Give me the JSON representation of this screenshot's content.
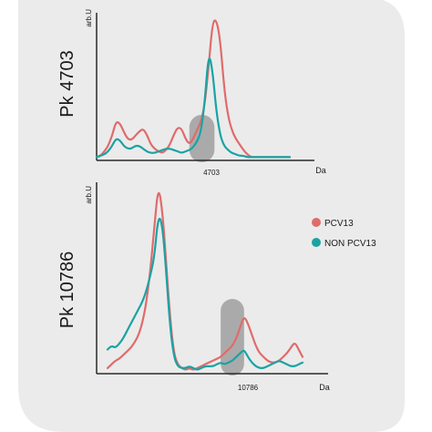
{
  "colors": {
    "background_panel": "#ebebeb",
    "axis": "#2b2b2b",
    "pcv13": "#e06b6b",
    "non_pcv13": "#1aa3a3",
    "highlight": "#8f8f8f"
  },
  "legend": {
    "items": [
      {
        "label": "PCV13",
        "color": "#e06b6b"
      },
      {
        "label": "NON PCV13",
        "color": "#1aa3a3"
      }
    ]
  },
  "chart_data": [
    {
      "type": "line",
      "title": "Pk 4703",
      "xlabel": "Da",
      "ylabel": "arb.U",
      "x_tick_label": "4703",
      "x": [
        0,
        2,
        4,
        6,
        8,
        10,
        12,
        14,
        16,
        18,
        20,
        22,
        24,
        26,
        28,
        30,
        32,
        34,
        36,
        38,
        40,
        42,
        44,
        46,
        48,
        50,
        52,
        54,
        56,
        58,
        60,
        62,
        64,
        66,
        68,
        70,
        72,
        74,
        76,
        78,
        80,
        82,
        84,
        86,
        88,
        90,
        92,
        94,
        96,
        98,
        100
      ],
      "series": [
        {
          "name": "PCV13",
          "values": [
            1,
            2,
            5,
            9,
            16,
            26,
            25,
            19,
            14,
            13,
            16,
            19,
            21,
            17,
            10,
            7,
            5,
            4,
            6,
            10,
            17,
            22,
            21,
            14,
            10,
            14,
            20,
            26,
            38,
            65,
            96,
            98,
            83,
            50,
            30,
            20,
            14,
            10,
            6,
            3,
            1,
            1,
            1,
            1,
            1,
            1,
            1,
            1,
            1,
            1,
            1
          ],
          "color": "#e06b6b"
        },
        {
          "name": "NON PCV13",
          "values": [
            1,
            2,
            3,
            5,
            9,
            14,
            13,
            9,
            7,
            7,
            9,
            9,
            7,
            5,
            4,
            4,
            5,
            6,
            7,
            7,
            6,
            5,
            4,
            5,
            6,
            8,
            12,
            19,
            40,
            75,
            62,
            33,
            16,
            9,
            6,
            4,
            3,
            2,
            2,
            1,
            1,
            1,
            1,
            1,
            1,
            1,
            1,
            1,
            1,
            1,
            1
          ],
          "color": "#1aa3a3"
        }
      ],
      "highlight_x_range": [
        48,
        61
      ],
      "ylim": [
        0,
        100
      ],
      "grid": false
    },
    {
      "type": "line",
      "title": "Pk 10786",
      "xlabel": "Da",
      "ylabel": "arb.U",
      "x_tick_label": "10786",
      "x": [
        0,
        2,
        4,
        6,
        8,
        10,
        12,
        14,
        16,
        18,
        20,
        22,
        24,
        26,
        28,
        30,
        32,
        34,
        36,
        38,
        40,
        42,
        44,
        46,
        48,
        50,
        52,
        54,
        56,
        58,
        60,
        62,
        64,
        66,
        68,
        70,
        72,
        74,
        76,
        78,
        80,
        82,
        84,
        86,
        88,
        90,
        92,
        94,
        96,
        98,
        100
      ],
      "series": [
        {
          "name": "PCV13",
          "values": [
            2,
            4,
            6,
            7,
            9,
            11,
            13,
            16,
            20,
            27,
            38,
            55,
            78,
            100,
            88,
            60,
            30,
            10,
            4,
            2,
            1,
            2,
            1,
            2,
            3,
            4,
            5,
            6,
            7,
            8,
            10,
            12,
            14,
            18,
            24,
            30,
            26,
            20,
            14,
            10,
            8,
            6,
            5,
            5,
            6,
            8,
            10,
            13,
            16,
            12,
            8
          ],
          "color": "#e06b6b"
        },
        {
          "name": "NON PCV13",
          "values": [
            12,
            14,
            13,
            15,
            18,
            22,
            26,
            30,
            34,
            38,
            44,
            52,
            62,
            84,
            80,
            55,
            25,
            8,
            3,
            2,
            2,
            3,
            2,
            1,
            2,
            3,
            3,
            3,
            4,
            5,
            4,
            5,
            6,
            8,
            10,
            12,
            8,
            5,
            3,
            2,
            2,
            3,
            4,
            5,
            6,
            5,
            4,
            3,
            3,
            4,
            5
          ],
          "color": "#1aa3a3"
        }
      ],
      "highlight_x_range": [
        58,
        70
      ],
      "ylim": [
        0,
        100
      ],
      "grid": false
    }
  ]
}
